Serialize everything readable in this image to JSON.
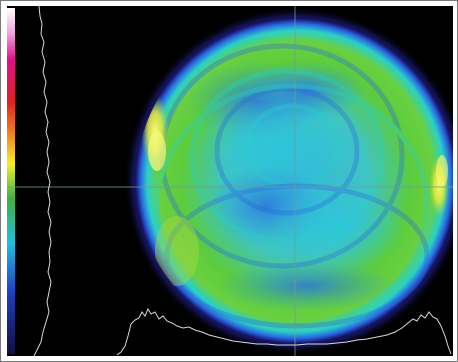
{
  "view": {
    "type": "beam-profile-false-color",
    "colors": {
      "background": "#000000",
      "crosshair": "#6f9e92",
      "profile_trace": "#d8d8d8",
      "beam_outer_glow": "#2a2aa8",
      "beam_green": "#5ccc3c",
      "beam_cyan": "#2ad0c8",
      "beam_blue": "#2a6ae0",
      "beam_yellow": "#f0f040",
      "palette_top": "#ffffff",
      "palette_magenta": "#e0108c",
      "palette_red": "#e02020",
      "palette_yellow": "#f8f020",
      "palette_green": "#40b040",
      "palette_cyan": "#20c0e0",
      "palette_blue": "#2040c0",
      "palette_bottom": "#101040"
    }
  }
}
